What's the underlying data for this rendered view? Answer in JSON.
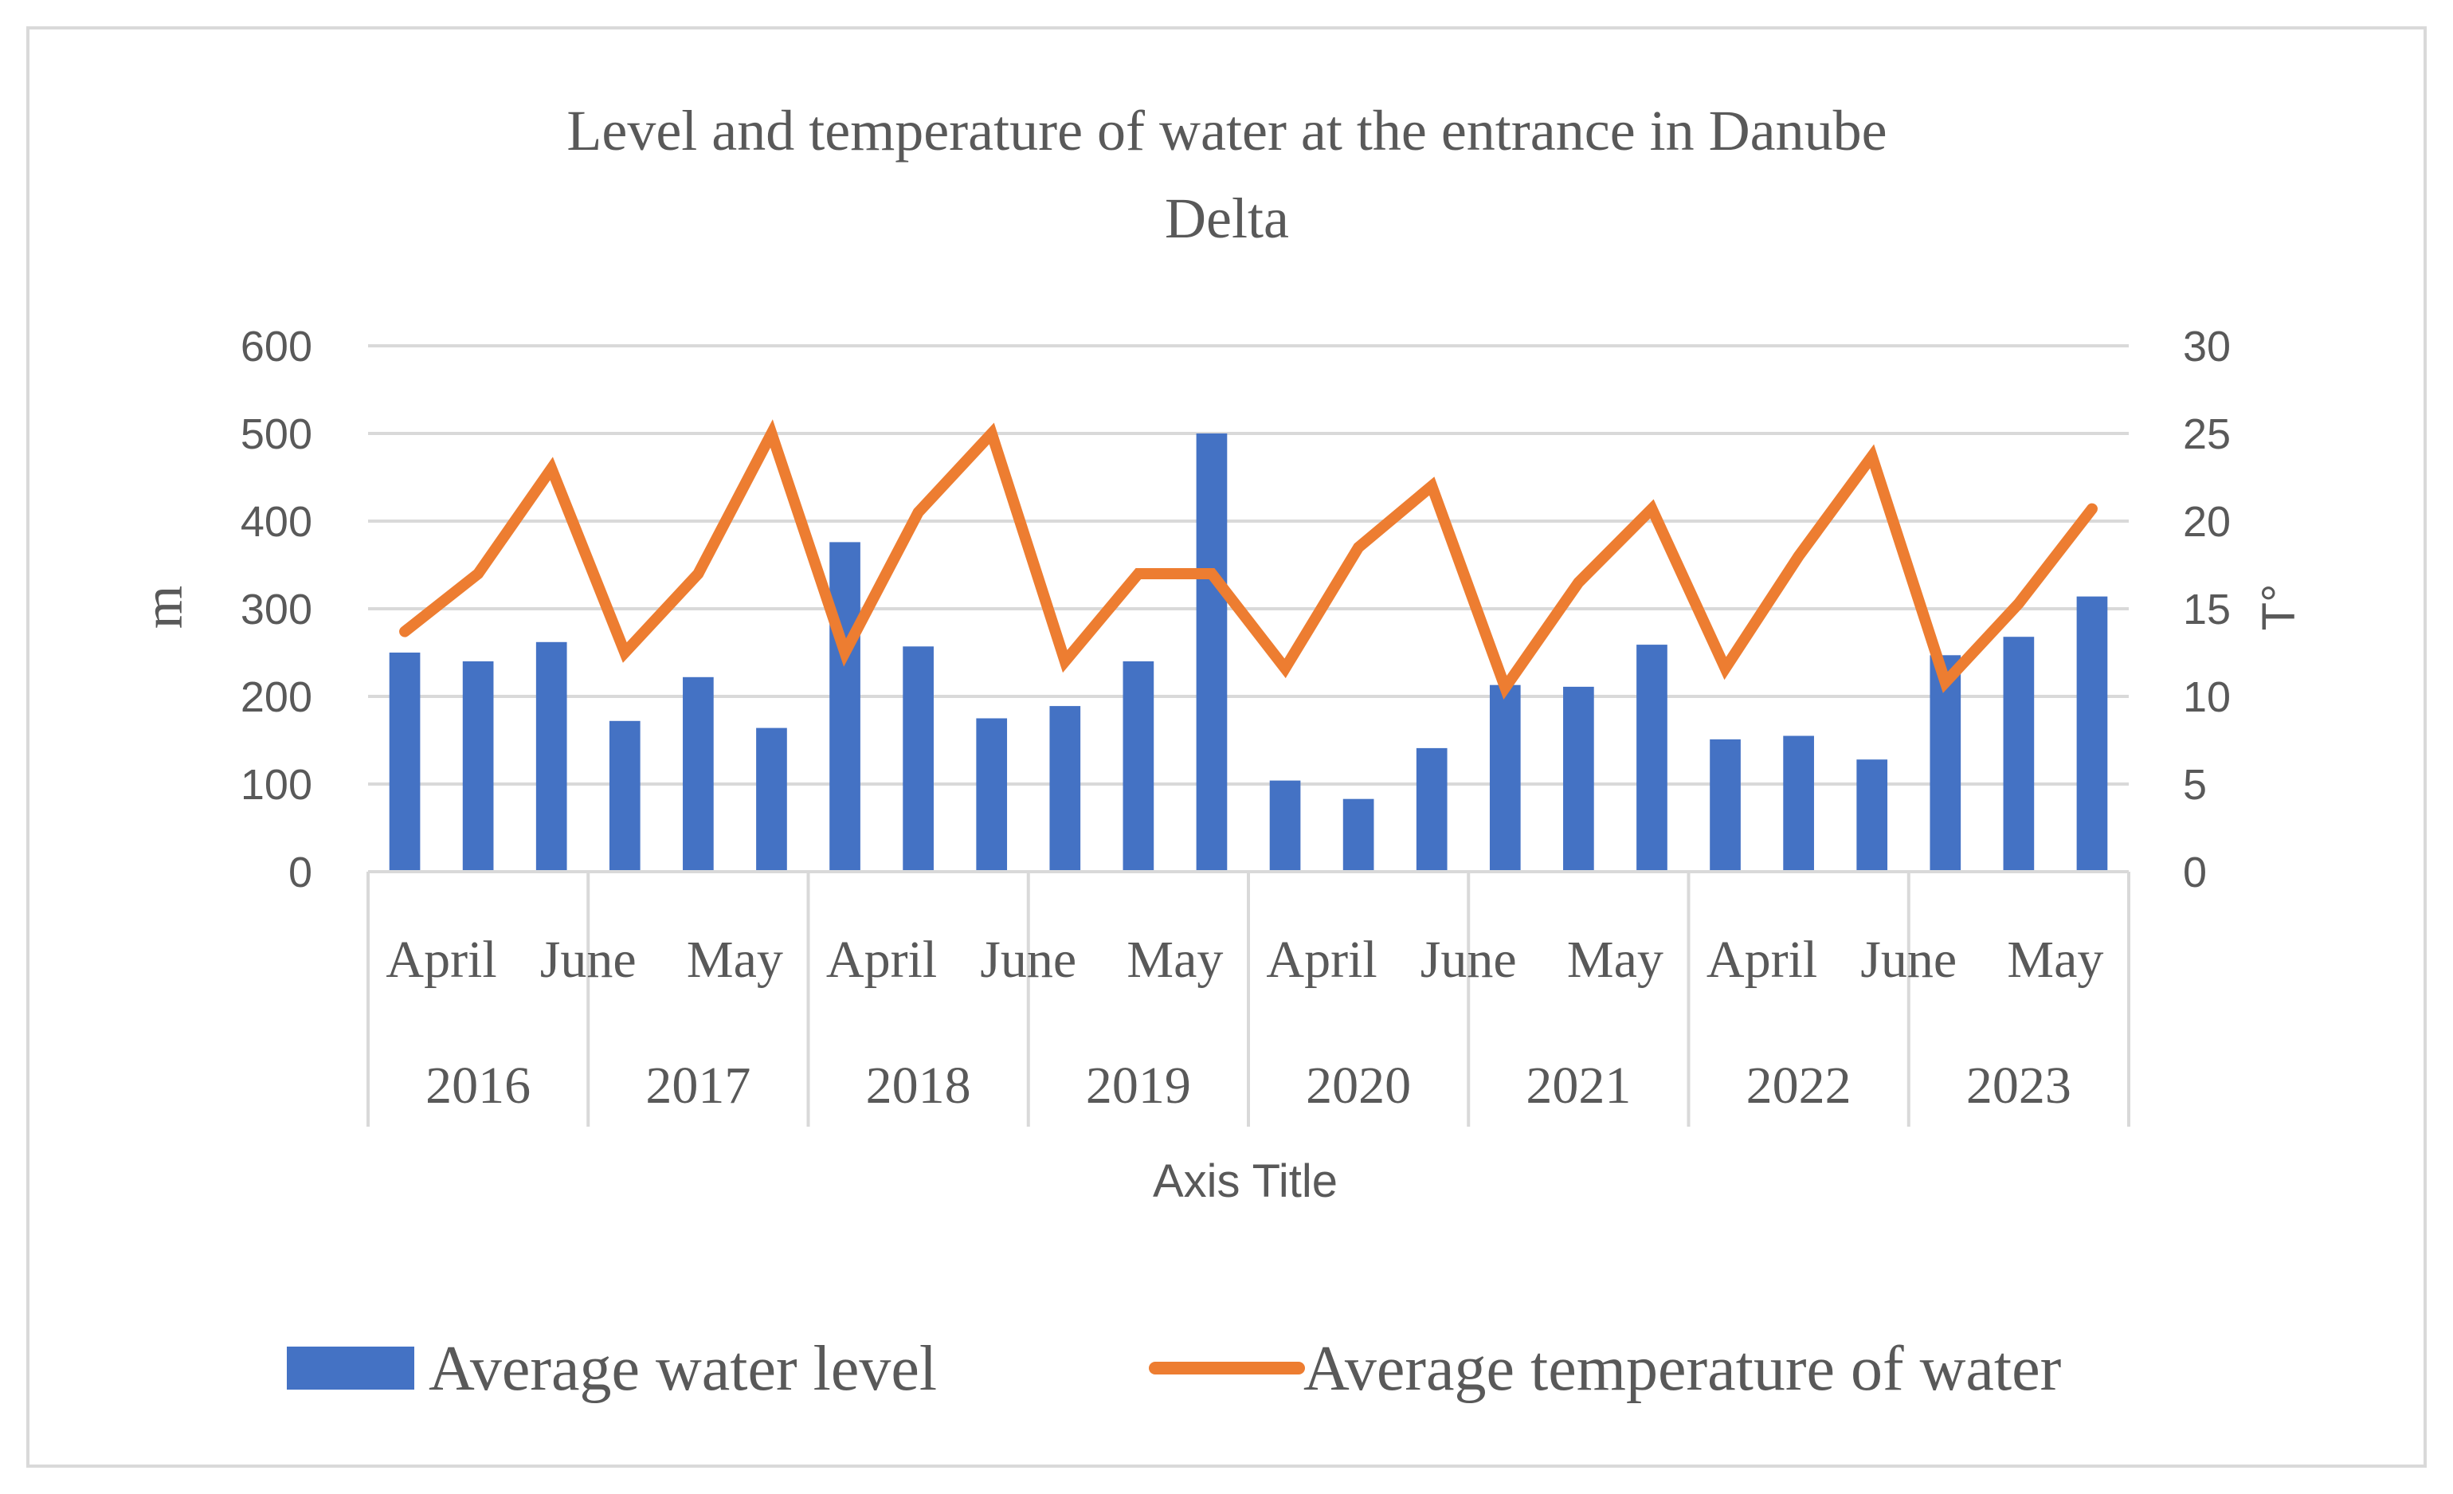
{
  "chart_data": {
    "type": "bar",
    "title": "Level and temperature of water at the entrance in Danube Delta",
    "title_lines": [
      "Level and temperature of water at the entrance in Danube",
      "Delta"
    ],
    "xlabel": "Axis Title",
    "ylabel": "m",
    "y2label": "T°",
    "ylim": [
      0,
      600
    ],
    "y2lim": [
      0,
      30
    ],
    "yticks": [
      "0",
      "100",
      "200",
      "300",
      "400",
      "500",
      "600"
    ],
    "y2ticks": [
      "0",
      "5",
      "10",
      "15",
      "20",
      "25",
      "30"
    ],
    "month_labels": [
      "April",
      "June",
      "May",
      "April",
      "June",
      "May",
      "April",
      "June",
      "May",
      "April",
      "June",
      "May"
    ],
    "years": [
      "2016",
      "2017",
      "2018",
      "2019",
      "2020",
      "2021",
      "2022",
      "2023"
    ],
    "legend_position": "bottom",
    "series": [
      {
        "name": "Average water level",
        "type": "bar",
        "axis": "left",
        "color": "#4472C4",
        "values": [
          250,
          240,
          262,
          172,
          222,
          164,
          376,
          257,
          175,
          189,
          240,
          500,
          104,
          83,
          141,
          213,
          211,
          259,
          151,
          155,
          128,
          247,
          268,
          314
        ]
      },
      {
        "name": "Average temperature of water",
        "type": "line",
        "axis": "right",
        "color": "#ED7D31",
        "values": [
          13.7,
          17.0,
          23.0,
          12.5,
          17.0,
          25.0,
          12.5,
          20.5,
          25.0,
          12.0,
          17.0,
          17.0,
          11.6,
          18.5,
          22.0,
          10.5,
          16.5,
          20.7,
          11.6,
          18.0,
          23.7,
          10.8,
          15.3,
          20.7
        ]
      }
    ]
  }
}
